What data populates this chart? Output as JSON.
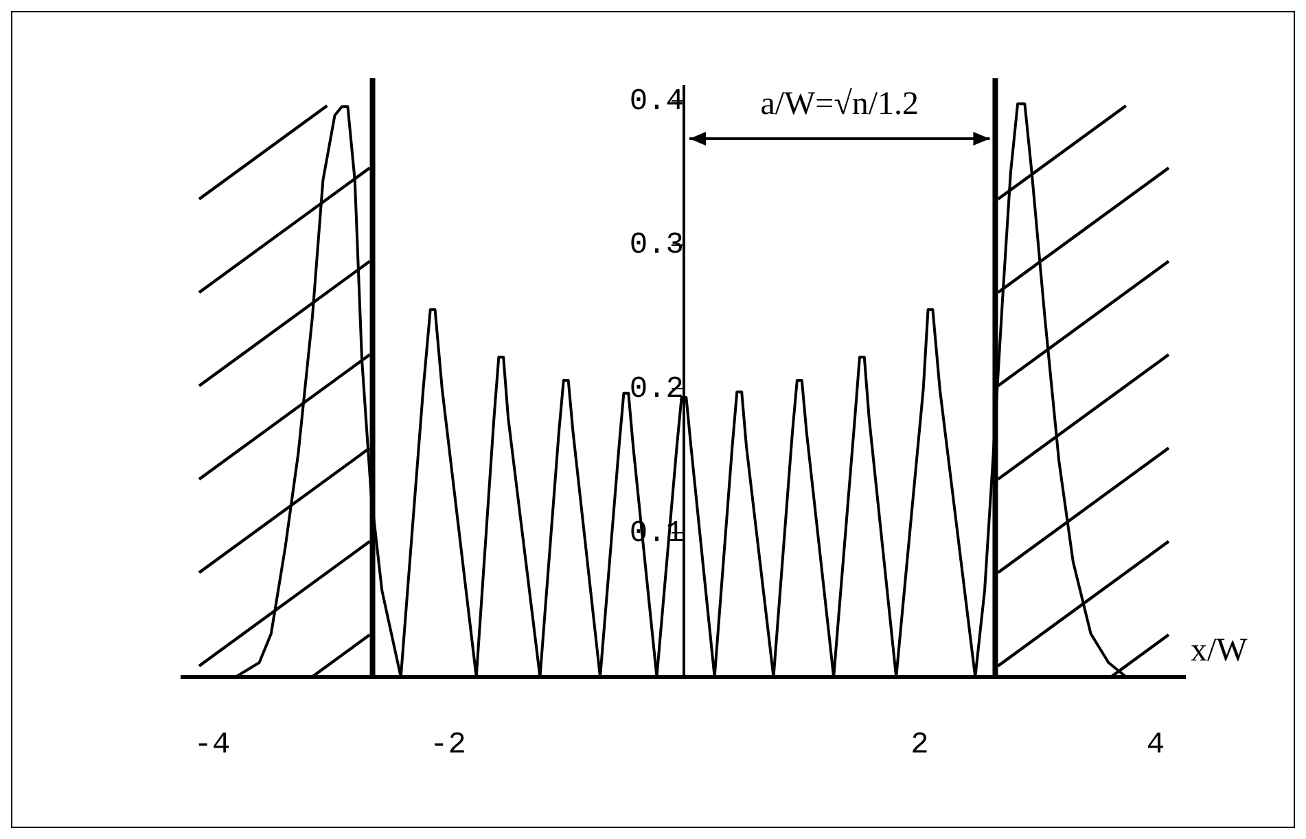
{
  "chart_data": {
    "type": "line",
    "xlabel": "x/W",
    "xlim": [
      -4.25,
      4.25
    ],
    "ylim": [
      0,
      0.41
    ],
    "xticks": [
      -4,
      -2,
      2,
      4
    ],
    "yticks": [
      {
        "value": 0.1,
        "label": "0.1"
      },
      {
        "value": 0.2,
        "label": "0.2"
      },
      {
        "value": 0.3,
        "label": "0.3"
      },
      {
        "value": 0.4,
        "label": "0.4"
      }
    ],
    "grid": false,
    "legend": false,
    "marker": "none",
    "line_style": "solid",
    "ref_lines": [
      {
        "axis": "x",
        "value": -2.64,
        "color": "#000000"
      },
      {
        "axis": "x",
        "value": 2.64,
        "color": "#000000"
      }
    ],
    "annotations": [
      "a/W=√n/1.2"
    ],
    "series": [
      {
        "color": "#000000",
        "x": [
          -4.0,
          -3.8,
          -3.6,
          -3.5,
          -3.38,
          -3.27,
          -3.15,
          -3.06,
          -2.96,
          -2.9,
          -2.85,
          -2.79,
          -2.73,
          -2.65,
          -2.56,
          -2.4,
          -2.21,
          -2.15,
          -2.11,
          -2.05,
          -1.76,
          -1.61,
          -1.57,
          -1.53,
          -1.49,
          -1.22,
          -1.06,
          -1.02,
          -0.98,
          -0.94,
          -0.71,
          -0.55,
          -0.51,
          -0.47,
          -0.43,
          -0.23,
          -0.06,
          -0.02,
          0.02,
          0.06,
          0.26,
          0.41,
          0.45,
          0.49,
          0.53,
          0.76,
          0.92,
          0.96,
          1.0,
          1.04,
          1.27,
          1.45,
          1.49,
          1.53,
          1.57,
          1.8,
          2.03,
          2.07,
          2.11,
          2.17,
          2.47,
          2.55,
          2.62,
          2.7,
          2.77,
          2.83,
          2.89,
          2.95,
          3.06,
          3.18,
          3.3,
          3.45,
          3.6,
          3.75,
          3.95
        ],
        "values": [
          0,
          0,
          0.01,
          0.03,
          0.09,
          0.155,
          0.25,
          0.345,
          0.39,
          0.396,
          0.396,
          0.345,
          0.22,
          0.125,
          0.06,
          0,
          0.2,
          0.255,
          0.255,
          0.2,
          0,
          0.18,
          0.222,
          0.222,
          0.18,
          0,
          0.17,
          0.206,
          0.206,
          0.17,
          0,
          0.16,
          0.197,
          0.197,
          0.16,
          0,
          0.16,
          0.194,
          0.194,
          0.16,
          0,
          0.16,
          0.198,
          0.198,
          0.16,
          0,
          0.17,
          0.206,
          0.206,
          0.17,
          0,
          0.18,
          0.222,
          0.222,
          0.18,
          0,
          0.2,
          0.255,
          0.255,
          0.2,
          0,
          0.06,
          0.15,
          0.26,
          0.35,
          0.398,
          0.398,
          0.35,
          0.25,
          0.15,
          0.08,
          0.03,
          0.01,
          0,
          0
        ]
      }
    ]
  }
}
